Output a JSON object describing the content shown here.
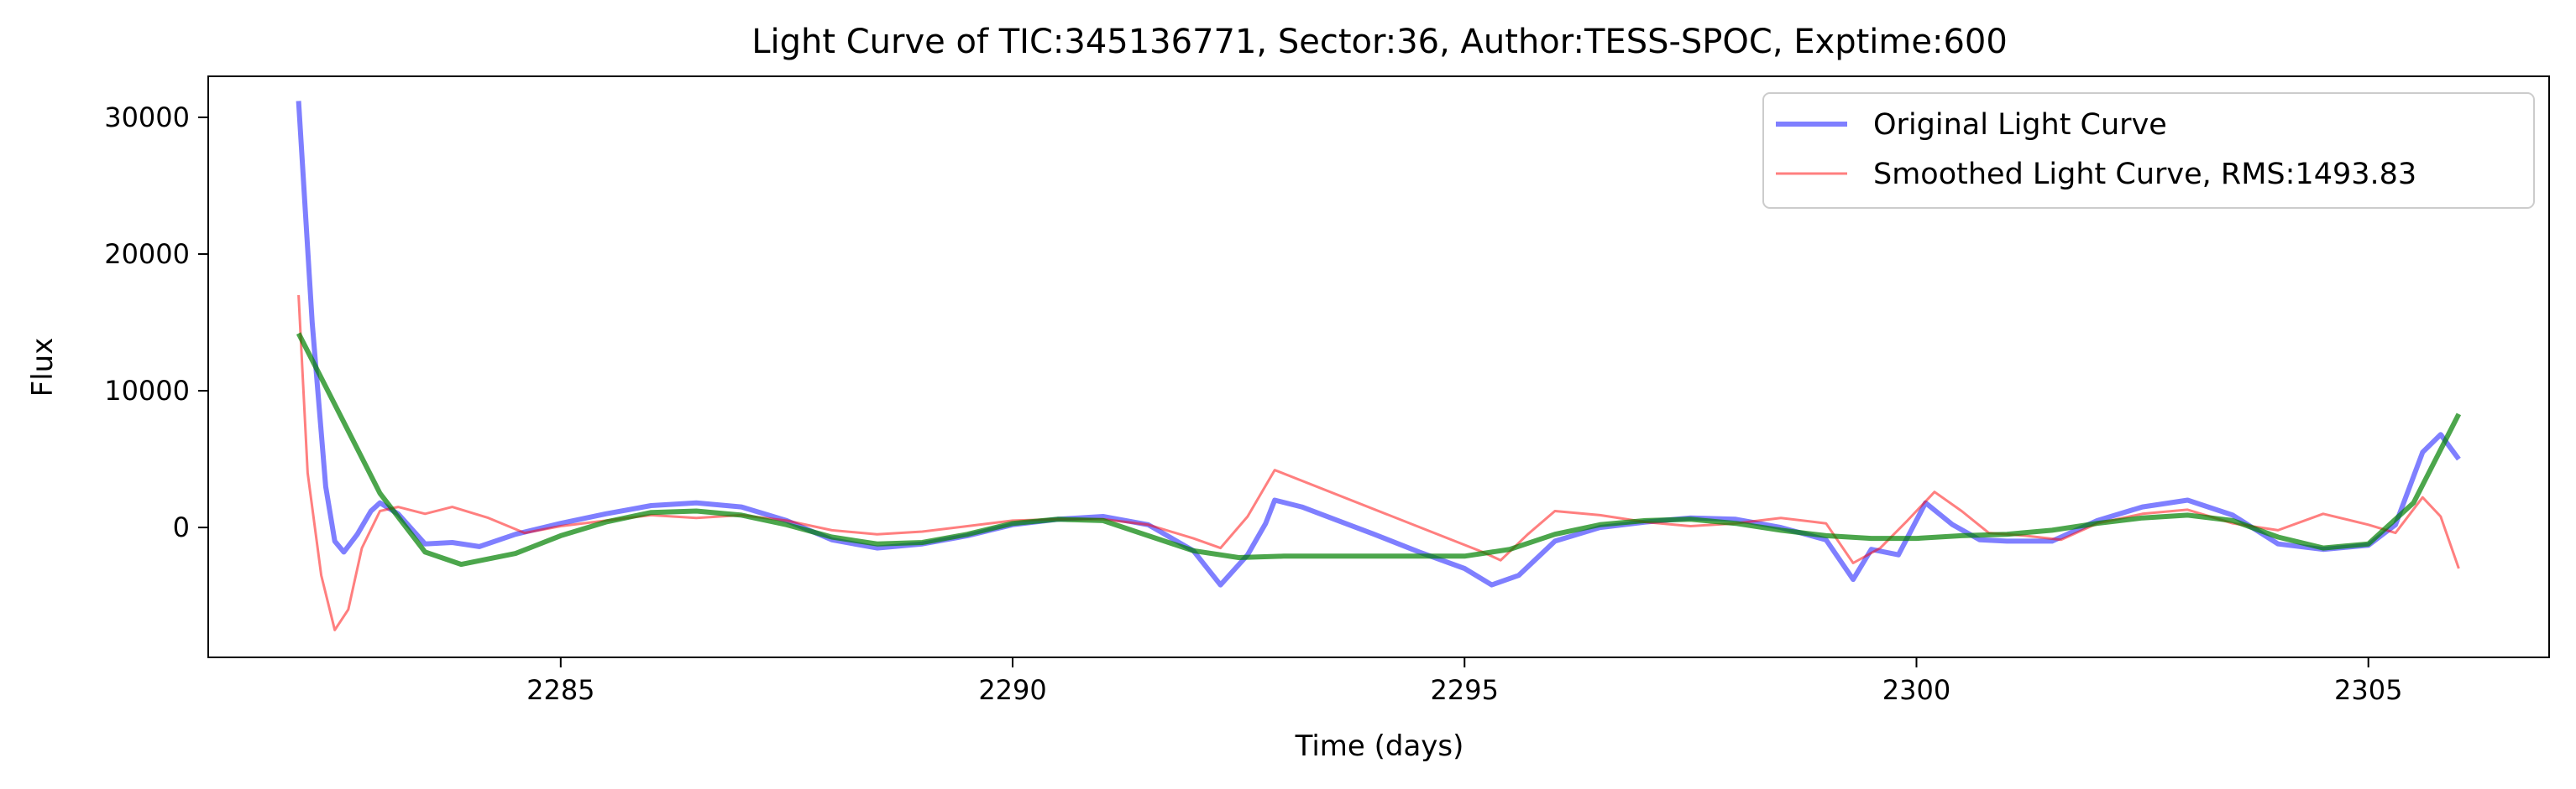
{
  "chart_data": {
    "type": "line",
    "title": "Light Curve of TIC:345136771, Sector:36, Author:TESS-SPOC, Exptime:600",
    "xlabel": "Time (days)",
    "ylabel": "Flux",
    "xlim": [
      2281.1,
      2307.0
    ],
    "ylim": [
      -9500,
      33000
    ],
    "xticks": [
      2285,
      2290,
      2295,
      2300,
      2305
    ],
    "yticks": [
      0,
      10000,
      20000,
      30000
    ],
    "grid": false,
    "legend": {
      "position": "top-right"
    },
    "series": [
      {
        "name": "Original Light Curve",
        "color": "#0000ff",
        "opacity": 0.5,
        "show_in_legend": true,
        "x": [
          2282.1,
          2282.25,
          2282.4,
          2282.5,
          2282.6,
          2282.75,
          2282.9,
          2283.0,
          2283.2,
          2283.5,
          2283.8,
          2284.1,
          2284.5,
          2285.0,
          2285.5,
          2286.0,
          2286.5,
          2287.0,
          2287.5,
          2288.0,
          2288.5,
          2289.0,
          2289.5,
          2290.0,
          2290.5,
          2291.0,
          2291.5,
          2292.0,
          2292.3,
          2292.6,
          2292.8,
          2292.9,
          2293.2,
          2293.6,
          2294.0,
          2294.5,
          2295.0,
          2295.3,
          2295.6,
          2296.0,
          2296.5,
          2297.0,
          2297.5,
          2298.0,
          2298.5,
          2299.0,
          2299.3,
          2299.5,
          2299.8,
          2300.1,
          2300.4,
          2300.7,
          2301.0,
          2301.5,
          2302.0,
          2302.5,
          2303.0,
          2303.5,
          2304.0,
          2304.5,
          2305.0,
          2305.3,
          2305.6,
          2305.8,
          2306.0
        ],
        "y": [
          31200,
          15000,
          3000,
          -1000,
          -1800,
          -500,
          1200,
          1800,
          1000,
          -1200,
          -1100,
          -1400,
          -500,
          300,
          1000,
          1600,
          1800,
          1500,
          500,
          -900,
          -1500,
          -1200,
          -600,
          200,
          600,
          800,
          200,
          -1700,
          -4200,
          -2000,
          300,
          2000,
          1500,
          500,
          -500,
          -1800,
          -3000,
          -4200,
          -3500,
          -1000,
          0,
          400,
          700,
          600,
          0,
          -900,
          -3800,
          -1600,
          -2000,
          1800,
          200,
          -900,
          -1000,
          -1000,
          500,
          1500,
          2000,
          900,
          -1200,
          -1600,
          -1300,
          200,
          5500,
          6800,
          5000
        ]
      },
      {
        "name": "Smoothed Light Curve, RMS:1493.83",
        "color": "#ff0000",
        "opacity": 0.5,
        "show_in_legend": true,
        "x": [
          2282.1,
          2282.2,
          2282.35,
          2282.5,
          2282.65,
          2282.8,
          2283.0,
          2283.2,
          2283.5,
          2283.8,
          2284.2,
          2284.6,
          2285.0,
          2285.5,
          2286.0,
          2286.5,
          2287.0,
          2287.5,
          2288.0,
          2288.5,
          2289.0,
          2289.5,
          2290.0,
          2290.5,
          2291.0,
          2291.5,
          2292.0,
          2292.3,
          2292.6,
          2292.9,
          2295.2,
          2295.4,
          2295.7,
          2296.0,
          2296.5,
          2297.0,
          2297.5,
          2298.0,
          2298.5,
          2299.0,
          2299.3,
          2299.6,
          2299.9,
          2300.2,
          2300.5,
          2300.8,
          2301.2,
          2301.6,
          2302.0,
          2302.5,
          2303.0,
          2303.5,
          2304.0,
          2304.5,
          2305.0,
          2305.3,
          2305.6,
          2305.8,
          2306.0
        ],
        "y": [
          17000,
          4000,
          -3500,
          -7500,
          -6000,
          -1500,
          1200,
          1500,
          1000,
          1500,
          700,
          -400,
          100,
          500,
          900,
          700,
          900,
          500,
          -200,
          -500,
          -300,
          100,
          500,
          600,
          600,
          200,
          -800,
          -1500,
          800,
          4200,
          -1800,
          -2400,
          -500,
          1200,
          900,
          400,
          100,
          300,
          700,
          300,
          -2600,
          -1500,
          500,
          2600,
          1200,
          -400,
          -600,
          -900,
          300,
          1000,
          1300,
          300,
          -200,
          1000,
          200,
          -400,
          2200,
          800,
          -3000
        ]
      },
      {
        "name": "",
        "color": "#008000",
        "opacity": 0.7,
        "show_in_legend": false,
        "x": [
          2282.1,
          2282.5,
          2283.0,
          2283.5,
          2283.9,
          2284.5,
          2285.0,
          2285.5,
          2286.0,
          2286.5,
          2287.0,
          2287.5,
          2288.0,
          2288.5,
          2289.0,
          2289.5,
          2290.0,
          2290.5,
          2291.0,
          2291.5,
          2292.0,
          2292.5,
          2293.0,
          2294.0,
          2295.0,
          2295.5,
          2296.0,
          2296.5,
          2297.0,
          2297.5,
          2298.0,
          2298.5,
          2299.0,
          2299.5,
          2300.0,
          2300.5,
          2301.0,
          2301.5,
          2302.0,
          2302.5,
          2303.0,
          2303.5,
          2304.0,
          2304.5,
          2305.0,
          2305.5,
          2306.0
        ],
        "y": [
          14200,
          9000,
          2500,
          -1800,
          -2700,
          -1900,
          -600,
          400,
          1100,
          1200,
          900,
          200,
          -700,
          -1200,
          -1100,
          -500,
          300,
          600,
          500,
          -600,
          -1700,
          -2200,
          -2100,
          -2100,
          -2100,
          -1600,
          -500,
          200,
          500,
          600,
          300,
          -200,
          -600,
          -800,
          -800,
          -600,
          -500,
          -200,
          300,
          700,
          900,
          500,
          -700,
          -1500,
          -1200,
          1800,
          8300
        ]
      }
    ]
  }
}
